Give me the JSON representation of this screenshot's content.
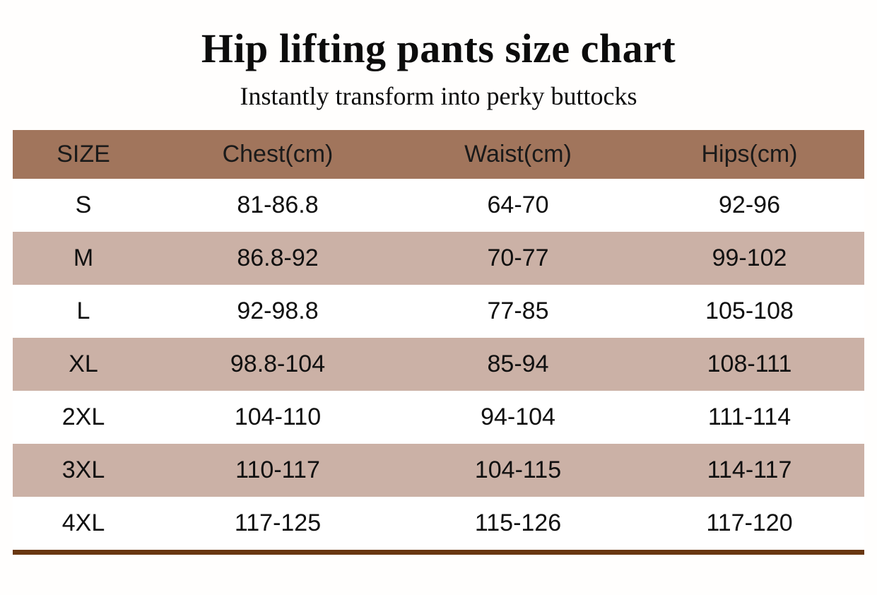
{
  "chart_data": {
    "type": "table",
    "title": "Hip lifting pants size chart",
    "subtitle": "Instantly transform into perky buttocks",
    "columns": [
      "SIZE",
      "Chest(cm)",
      "Waist(cm)",
      "Hips(cm)"
    ],
    "rows": [
      [
        "S",
        "81-86.8",
        "64-70",
        "92-96"
      ],
      [
        "M",
        "86.8-92",
        "70-77",
        "99-102"
      ],
      [
        "L",
        "92-98.8",
        "77-85",
        "105-108"
      ],
      [
        "XL",
        "98.8-104",
        "85-94",
        "108-111"
      ],
      [
        "2XL",
        "104-110",
        "94-104",
        "111-114"
      ],
      [
        "3XL",
        "110-117",
        "104-115",
        "114-117"
      ],
      [
        "4XL",
        "117-125",
        "115-126",
        "117-120"
      ]
    ],
    "layout": {
      "striped": true,
      "stripe_pattern": "white / tan alternating, starting white",
      "header_bg": "#a1755c",
      "stripe_bg": "#cbb1a6",
      "row_bg": "#ffffff",
      "accent_bar_color": "#693711",
      "text_color": "#101010",
      "background": "#fffefd"
    }
  }
}
